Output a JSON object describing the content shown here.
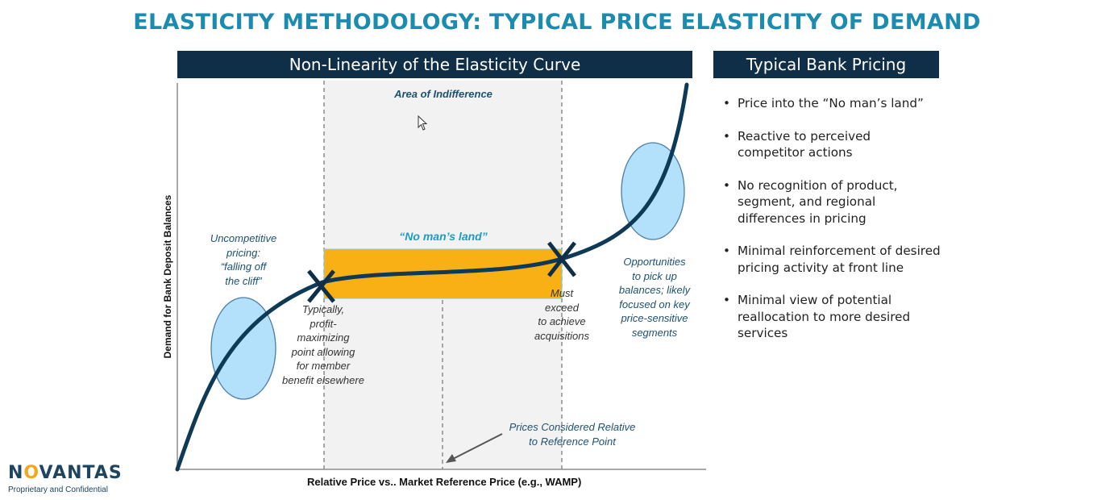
{
  "page": {
    "title": "ELASTICITY METHODOLOGY: TYPICAL PRICE ELASTICITY OF DEMAND"
  },
  "curve_panel": {
    "header": "Non-Linearity of the Elasticity Curve",
    "y_axis_label": "Demand for Bank Deposit Balances",
    "x_axis_label": "Relative Price vs.. Market Reference Price (e.g., WAMP)",
    "area_of_indifference": "Area of Indifference",
    "no_mans_land": "“No man’s land”",
    "uncompetitive_lines": [
      "Uncompetitive",
      "pricing:",
      "“falling off",
      "the cliff”"
    ],
    "typically_lines": [
      "Typically,",
      "profit-",
      "maximizing",
      "point allowing",
      "for member",
      "benefit elsewhere"
    ],
    "must_exceed_lines": [
      "Must",
      "exceed",
      "to achieve",
      "acquisitions"
    ],
    "opportunities_lines": [
      "Opportunities",
      "to pick up",
      "balances; likely",
      "focused on key",
      "price-sensitive",
      "segments"
    ],
    "prices_considered_lines": [
      "Prices Considered Relative",
      "to Reference Point"
    ],
    "colors": {
      "curve": "#0f3a57",
      "band": "#f9b014",
      "ellipse_fill": "#b3e0fa",
      "ellipse_stroke": "#4a7ea8",
      "shaded_area": "#f2f2f2",
      "band_text": "#1e9bbd"
    }
  },
  "bank_panel": {
    "header": "Typical Bank Pricing",
    "bullets": [
      "Price into the “No man’s land”",
      "Reactive to perceived competitor actions",
      "No recognition of product, segment, and regional differences in pricing",
      "Minimal reinforcement of desired pricing activity at front line",
      "Minimal view of potential reallocation to more desired services"
    ]
  },
  "footer": {
    "logo_prefix": "N",
    "logo_o": "O",
    "logo_suffix": "VANTAS",
    "confidential": "Proprietary and Confidential"
  }
}
